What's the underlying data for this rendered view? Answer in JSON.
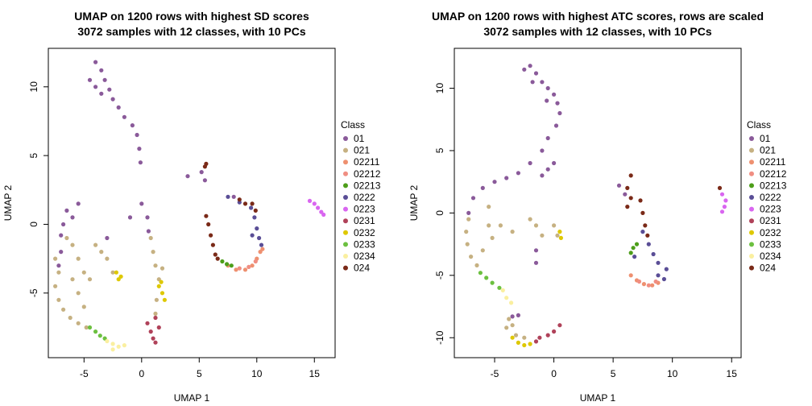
{
  "chart_data": [
    {
      "type": "scatter",
      "title": "UMAP on 1200 rows with highest SD scores",
      "subtitle": "3072 samples with 12 classes, with 10 PCs",
      "xlabel": "UMAP 1",
      "ylabel": "UMAP 2",
      "xlim": [
        -8.1,
        16.8
      ],
      "ylim": [
        -9.7,
        12.8
      ],
      "xticks": [
        -5,
        0,
        5,
        10,
        15
      ],
      "yticks": [
        -5,
        0,
        5,
        10
      ],
      "grid": false,
      "legend_title": "Class",
      "legend_position": "right",
      "series": [
        {
          "name": "01",
          "color": "#8A5A9A",
          "values": [
            [
              -4,
              11.8
            ],
            [
              -3.5,
              11.2
            ],
            [
              -3.2,
              10.5
            ],
            [
              -2.8,
              9.8
            ],
            [
              -2.5,
              9.1
            ],
            [
              -2,
              8.5
            ],
            [
              -1.5,
              7.8
            ],
            [
              -0.8,
              7.2
            ],
            [
              -0.4,
              6.5
            ],
            [
              -0.2,
              5.5
            ],
            [
              -0.1,
              4.5
            ],
            [
              -4.5,
              10.5
            ],
            [
              -4,
              10
            ],
            [
              -3.5,
              9.5
            ],
            [
              -6.5,
              1
            ],
            [
              -6.8,
              0
            ],
            [
              -7,
              -0.8
            ],
            [
              -7,
              -2
            ],
            [
              -3,
              -1
            ],
            [
              -1,
              0.5
            ],
            [
              0,
              1.5
            ],
            [
              0.5,
              0.5
            ],
            [
              0.6,
              -0.5
            ],
            [
              -5.5,
              1.5
            ],
            [
              -6,
              0.5
            ],
            [
              -7.2,
              -3
            ],
            [
              5.2,
              3.8
            ],
            [
              5.5,
              3.2
            ],
            [
              4,
              3.5
            ],
            [
              8,
              2
            ]
          ]
        },
        {
          "name": "021",
          "color": "#C6B182",
          "values": [
            [
              -7.5,
              -2.5
            ],
            [
              -7.2,
              -3.5
            ],
            [
              -7.5,
              -4.5
            ],
            [
              -7.2,
              -5.5
            ],
            [
              -6.8,
              -6.2
            ],
            [
              -6.2,
              -6.8
            ],
            [
              -5.5,
              -7.2
            ],
            [
              -4.8,
              -7.5
            ],
            [
              -4,
              -1.5
            ],
            [
              -3.5,
              -2
            ],
            [
              -3,
              -2.5
            ],
            [
              -6.5,
              -1
            ],
            [
              -6,
              -1.5
            ],
            [
              -5.5,
              -2.5
            ],
            [
              -5,
              -3.5
            ],
            [
              -4.5,
              -4
            ],
            [
              -6,
              -4
            ],
            [
              -5.5,
              -5
            ],
            [
              -5,
              -6
            ],
            [
              0.8,
              -1
            ],
            [
              1,
              -2
            ],
            [
              1.2,
              -3
            ],
            [
              1.5,
              -4
            ],
            [
              -2.5,
              -3.5
            ],
            [
              1.8,
              -3.2
            ],
            [
              1.3,
              -5.5
            ],
            [
              1.2,
              -6.5
            ]
          ]
        },
        {
          "name": "02211",
          "color": "#EE9070",
          "values": [
            [
              7.5,
              -3
            ],
            [
              8.2,
              -3.3
            ],
            [
              9,
              -3.3
            ],
            [
              9.6,
              -3
            ],
            [
              10,
              -2.5
            ],
            [
              10.3,
              -2
            ],
            [
              10.5,
              -1.8
            ]
          ]
        },
        {
          "name": "02212",
          "color": "#F08E82",
          "values": [
            [
              8.5,
              -3.2
            ],
            [
              9.3,
              -3.1
            ],
            [
              9.9,
              -2.7
            ]
          ]
        },
        {
          "name": "02213",
          "color": "#4D9E1A",
          "values": [
            [
              7,
              -2.7
            ],
            [
              7.4,
              -2.9
            ],
            [
              7.8,
              -3
            ]
          ]
        },
        {
          "name": "0222",
          "color": "#5A4E96",
          "values": [
            [
              9.5,
              1.2
            ],
            [
              9.8,
              0.5
            ],
            [
              10,
              -0.3
            ],
            [
              10.2,
              -1
            ],
            [
              10.4,
              -1.5
            ],
            [
              9.6,
              -0.8
            ],
            [
              8.5,
              1.6
            ],
            [
              7.5,
              2
            ]
          ]
        },
        {
          "name": "0223",
          "color": "#D966F0",
          "values": [
            [
              14.6,
              1.7
            ],
            [
              15,
              1.5
            ],
            [
              15.3,
              1.2
            ],
            [
              15.6,
              0.9
            ],
            [
              15.8,
              0.7
            ]
          ]
        },
        {
          "name": "0231",
          "color": "#B0425A",
          "values": [
            [
              0.5,
              -7.2
            ],
            [
              0.8,
              -7.8
            ],
            [
              1,
              -8.3
            ],
            [
              1.2,
              -8.6
            ],
            [
              1.5,
              -7.5
            ],
            [
              1.2,
              -6.8
            ]
          ]
        },
        {
          "name": "0232",
          "color": "#DEC800",
          "values": [
            [
              1.5,
              -4.5
            ],
            [
              1.8,
              -5
            ],
            [
              2,
              -5.5
            ],
            [
              1.7,
              -4.2
            ],
            [
              -2,
              -4
            ],
            [
              -2.2,
              -3.5
            ],
            [
              -1.8,
              -3.8
            ]
          ]
        },
        {
          "name": "0233",
          "color": "#6CC040",
          "values": [
            [
              -4.5,
              -7.5
            ],
            [
              -4,
              -7.8
            ],
            [
              -3.6,
              -8.1
            ],
            [
              -3.2,
              -8.3
            ]
          ]
        },
        {
          "name": "0234",
          "color": "#FAEFA0",
          "values": [
            [
              -3,
              -8.5
            ],
            [
              -2.5,
              -8.7
            ],
            [
              -2,
              -8.9
            ],
            [
              -1.5,
              -8.8
            ],
            [
              -2.5,
              -9.1
            ]
          ]
        },
        {
          "name": "024",
          "color": "#7A2A18",
          "values": [
            [
              5.6,
              0.6
            ],
            [
              5.8,
              0
            ],
            [
              6,
              -0.8
            ],
            [
              6.2,
              -1.5
            ],
            [
              6.4,
              -2.2
            ],
            [
              6.6,
              -2.5
            ],
            [
              8.5,
              1.8
            ],
            [
              9,
              1.5
            ],
            [
              9.6,
              1.5
            ],
            [
              9.9,
              1
            ],
            [
              5.5,
              4.2
            ],
            [
              5.6,
              4.4
            ]
          ]
        }
      ]
    },
    {
      "type": "scatter",
      "title": "UMAP on 1200 rows with highest ATC scores, rows are scaled",
      "subtitle": "3072 samples with 12 classes, with 10 PCs",
      "xlabel": "UMAP 1",
      "ylabel": "UMAP 2",
      "xlim": [
        -8.4,
        15.8
      ],
      "ylim": [
        -11.6,
        13.2
      ],
      "xticks": [
        -5,
        0,
        5,
        10,
        15
      ],
      "yticks": [
        -10,
        -5,
        0,
        5,
        10
      ],
      "grid": false,
      "legend_title": "Class",
      "legend_position": "right",
      "series": [
        {
          "name": "01",
          "color": "#8A5A9A",
          "values": [
            [
              -2,
              11.8
            ],
            [
              -1.5,
              11.2
            ],
            [
              -1,
              10.5
            ],
            [
              -0.5,
              10
            ],
            [
              0,
              9.5
            ],
            [
              0.3,
              8.8
            ],
            [
              0.5,
              8
            ],
            [
              0.2,
              7
            ],
            [
              -0.5,
              6
            ],
            [
              -1,
              5
            ],
            [
              -2,
              4
            ],
            [
              -3,
              3.2
            ],
            [
              -4,
              2.8
            ],
            [
              -5,
              2.5
            ],
            [
              -6,
              2
            ],
            [
              -6.8,
              1.2
            ],
            [
              -7.2,
              0
            ],
            [
              -2.5,
              11.5
            ],
            [
              -1.8,
              10.5
            ],
            [
              -0.6,
              9
            ],
            [
              0,
              4
            ],
            [
              -0.5,
              3.5
            ],
            [
              -1,
              3
            ],
            [
              -1.5,
              -3
            ],
            [
              -1.5,
              -4
            ],
            [
              5.5,
              2.2
            ],
            [
              6,
              1.5
            ],
            [
              -3,
              -8.2
            ],
            [
              -3.5,
              -8.3
            ]
          ]
        },
        {
          "name": "021",
          "color": "#C6B182",
          "values": [
            [
              -7.2,
              -0.5
            ],
            [
              -7.4,
              -1.5
            ],
            [
              -7.3,
              -2.5
            ],
            [
              -7,
              -3.5
            ],
            [
              -6.5,
              -4.2
            ],
            [
              -5.5,
              0.5
            ],
            [
              -5.5,
              -1
            ],
            [
              -5.2,
              -2
            ],
            [
              -6,
              -3
            ],
            [
              -4.5,
              -1
            ],
            [
              -3.5,
              -1.5
            ],
            [
              -2,
              -0.5
            ],
            [
              -1.5,
              -1
            ],
            [
              -1,
              -1.8
            ],
            [
              0,
              -1
            ],
            [
              0.3,
              -1.8
            ],
            [
              -3.8,
              -8.5
            ],
            [
              -4,
              -9.2
            ],
            [
              -3.2,
              -9.8
            ],
            [
              -2.5,
              -10
            ],
            [
              -3.5,
              -9
            ]
          ]
        },
        {
          "name": "02211",
          "color": "#EE9070",
          "values": [
            [
              6.5,
              -5
            ],
            [
              7,
              -5.4
            ],
            [
              7.6,
              -5.7
            ],
            [
              8.3,
              -5.8
            ],
            [
              8.8,
              -5.6
            ]
          ]
        },
        {
          "name": "02212",
          "color": "#F08E82",
          "values": [
            [
              7.2,
              -5.5
            ],
            [
              8,
              -5.8
            ],
            [
              8.6,
              -5.5
            ]
          ]
        },
        {
          "name": "02213",
          "color": "#4D9E1A",
          "values": [
            [
              6.5,
              -3.2
            ],
            [
              6.7,
              -2.8
            ],
            [
              7,
              -2.5
            ]
          ]
        },
        {
          "name": "0222",
          "color": "#5A4E96",
          "values": [
            [
              7.5,
              -1.5
            ],
            [
              8,
              -2.5
            ],
            [
              8.4,
              -3.3
            ],
            [
              8.8,
              -4
            ],
            [
              9.5,
              -4.5
            ],
            [
              8.8,
              -5
            ],
            [
              9.3,
              -5.3
            ],
            [
              6.8,
              -3.5
            ]
          ]
        },
        {
          "name": "0223",
          "color": "#D966F0",
          "values": [
            [
              14.2,
              1.5
            ],
            [
              14.5,
              1
            ],
            [
              14.4,
              0.5
            ],
            [
              14.2,
              0.1
            ]
          ]
        },
        {
          "name": "0231",
          "color": "#B0425A",
          "values": [
            [
              -1.2,
              -10
            ],
            [
              -0.5,
              -9.8
            ],
            [
              0,
              -9.5
            ],
            [
              0.5,
              -9
            ],
            [
              -1.5,
              -10.3
            ]
          ]
        },
        {
          "name": "0232",
          "color": "#DEC800",
          "values": [
            [
              -3.5,
              -10
            ],
            [
              -3,
              -10.4
            ],
            [
              -2.5,
              -10.6
            ],
            [
              -2,
              -10.5
            ],
            [
              0.5,
              -1.5
            ],
            [
              0.6,
              -2
            ]
          ]
        },
        {
          "name": "0233",
          "color": "#6CC040",
          "values": [
            [
              -6.2,
              -4.8
            ],
            [
              -5.7,
              -5.2
            ],
            [
              -5.2,
              -5.6
            ],
            [
              -4.6,
              -6
            ]
          ]
        },
        {
          "name": "0234",
          "color": "#FAEFA0",
          "values": [
            [
              -4.3,
              -6.2
            ],
            [
              -4,
              -6.8
            ],
            [
              -3.6,
              -7.2
            ]
          ]
        },
        {
          "name": "024",
          "color": "#7A2A18",
          "values": [
            [
              6.5,
              3
            ],
            [
              6.2,
              2
            ],
            [
              6.5,
              1.2
            ],
            [
              6.2,
              0.5
            ],
            [
              7.3,
              1
            ],
            [
              7.5,
              0
            ],
            [
              7.7,
              -1
            ],
            [
              7.9,
              -1.8
            ],
            [
              14,
              2
            ]
          ]
        }
      ]
    }
  ]
}
